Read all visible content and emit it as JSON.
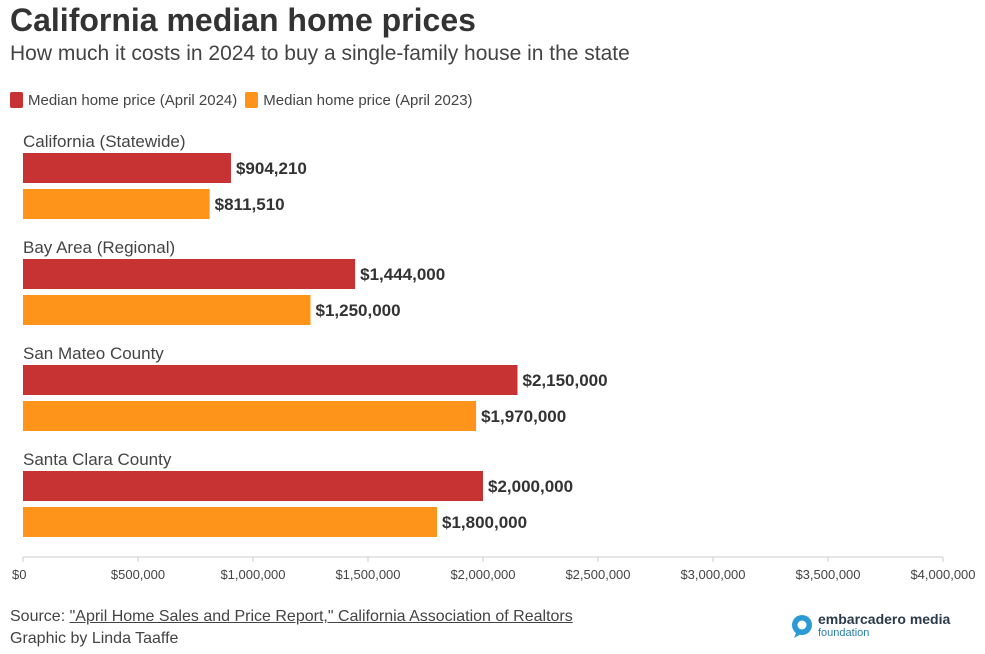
{
  "header": {
    "title": "California median home prices",
    "subtitle": "How much it costs in 2024 to buy a single-family house in the state"
  },
  "footer": {
    "source_prefix": "Source: ",
    "source_link": "\"April Home Sales and Price Report,\" California Association of Realtors",
    "credit": "Graphic by Linda Taaffe",
    "logo_name": "embarcadero media",
    "logo_sub": "foundation"
  },
  "colors": {
    "series_2024": "#c73233",
    "series_2023": "#ff941a",
    "logo_accent": "#2b9bd6"
  },
  "chart_data": {
    "type": "bar",
    "orientation": "horizontal",
    "title": "California median home prices",
    "subtitle": "How much it costs in 2024 to buy a single-family house in the state",
    "categories": [
      "California (Statewide)",
      "Bay Area (Regional)",
      "San Mateo County",
      "Santa Clara County"
    ],
    "series": [
      {
        "name": "Median home price (April 2024)",
        "color": "#c73233",
        "values": [
          904210,
          1444000,
          2150000,
          2000000
        ],
        "labels": [
          "$904,210",
          "$1,444,000",
          "$2,150,000",
          "$2,000,000"
        ]
      },
      {
        "name": "Median home price (April 2023)",
        "color": "#ff941a",
        "values": [
          811510,
          1250000,
          1970000,
          1800000
        ],
        "labels": [
          "$811,510",
          "$1,250,000",
          "$1,970,000",
          "$1,800,000"
        ]
      }
    ],
    "xlim": [
      0,
      4000000
    ],
    "xticks": [
      0,
      500000,
      1000000,
      1500000,
      2000000,
      2500000,
      3000000,
      3500000,
      4000000
    ],
    "xtick_labels": [
      "$0",
      "$500,000",
      "$1,000,000",
      "$1,500,000",
      "$2,000,000",
      "$2,500,000",
      "$3,000,000",
      "$3,500,000",
      "$4,000,000"
    ],
    "grid": false,
    "legend_position": "top-left"
  }
}
